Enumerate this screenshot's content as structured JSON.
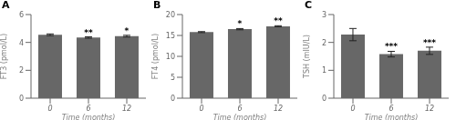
{
  "chart_data": [
    {
      "type": "bar",
      "title": "A",
      "xlabel": "Time (months)",
      "ylabel": "FT3 (pmol/L)",
      "categories": [
        "0",
        "6",
        "12"
      ],
      "values": [
        4.55,
        4.35,
        4.45
      ],
      "errors": [
        0.06,
        0.05,
        0.06
      ],
      "annotations": [
        {
          "category": "6",
          "text": "**"
        },
        {
          "category": "12",
          "text": "*"
        }
      ],
      "color": "#676767",
      "ylim": [
        0,
        6
      ],
      "yticks": [
        0,
        2,
        4,
        6
      ],
      "grid": false
    },
    {
      "type": "bar",
      "title": "B",
      "xlabel": "Time (months)",
      "ylabel": "FT4 (pmol/L)",
      "categories": [
        "0",
        "6",
        "12"
      ],
      "values": [
        15.8,
        16.5,
        17.2
      ],
      "errors": [
        0.12,
        0.15,
        0.12
      ],
      "annotations": [
        {
          "category": "6",
          "text": "*"
        },
        {
          "category": "12",
          "text": "**"
        }
      ],
      "color": "#676767",
      "ylim": [
        0,
        20
      ],
      "yticks": [
        0,
        5,
        10,
        15,
        20
      ],
      "grid": false
    },
    {
      "type": "bar",
      "title": "C",
      "xlabel": "Time (months)",
      "ylabel": "TSH (mIU/L)",
      "categories": [
        "0",
        "6",
        "12"
      ],
      "values": [
        2.28,
        1.58,
        1.7
      ],
      "errors": [
        0.22,
        0.1,
        0.13
      ],
      "annotations": [
        {
          "category": "6",
          "text": "***"
        },
        {
          "category": "12",
          "text": "***"
        }
      ],
      "color": "#676767",
      "ylim": [
        0,
        3
      ],
      "yticks": [
        0,
        1,
        2,
        3
      ],
      "grid": false
    }
  ]
}
